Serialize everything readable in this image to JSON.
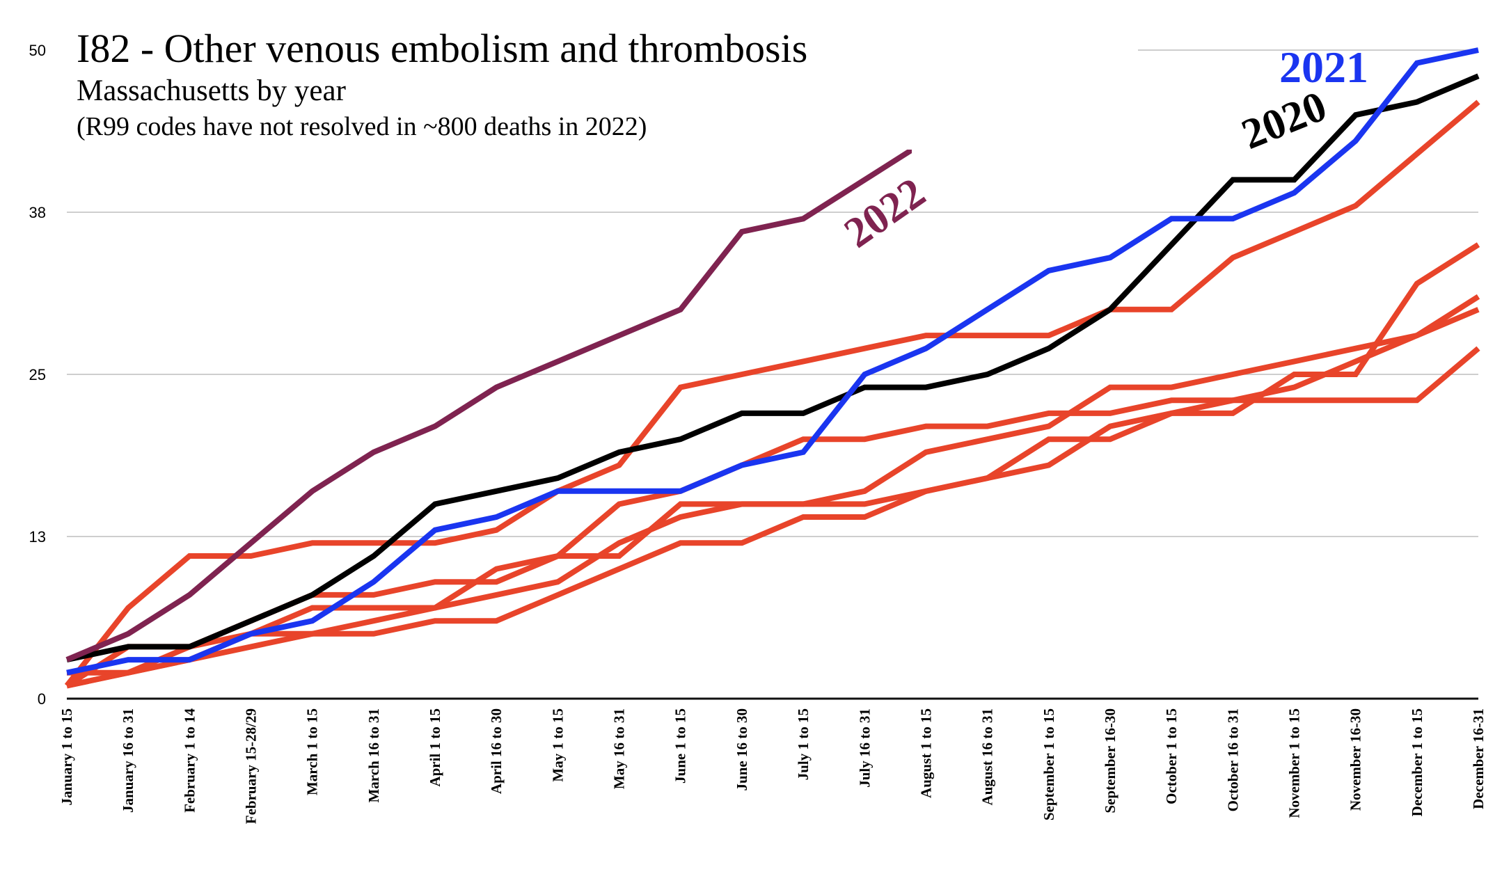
{
  "chart_data": {
    "type": "line",
    "title": "I82 - Other venous embolism and thrombosis",
    "subtitle": "Massachusetts by year",
    "note": "(R99 codes have not resolved in ~800 deaths in 2022)",
    "xlabel": "",
    "ylabel": "",
    "ylim": [
      0,
      50
    ],
    "yticks": [
      0,
      13,
      25,
      38,
      50
    ],
    "ytick_values": [
      0,
      12.5,
      25,
      37.5,
      50
    ],
    "grid": true,
    "legend": "none (inline labels)",
    "categories": [
      "January 1 to 15",
      "January 16 to 31",
      "February 1 to 14",
      "February 15-28/29",
      "March 1 to 15",
      "March 16 to 31",
      "April 1 to 15",
      "April 16 to 30",
      "May 1 to 15",
      "May 16 to 31",
      "June 1 to 15",
      "June 16 to 30",
      "July 1 to 15",
      "July 16 to 31",
      "August 1 to 15",
      "August 16 to 31",
      "September 1 to 15",
      "September 16-30",
      "October 1 to 15",
      "October 16 to 31",
      "November 1 to 15",
      "November 16-30",
      "December 1 to 15",
      "December 16-31"
    ],
    "series": [
      {
        "name": "other-year-a",
        "color": "#E8442A",
        "values": [
          1,
          7,
          11,
          11,
          12,
          12,
          12,
          13,
          16,
          18,
          24,
          25,
          26,
          27,
          28,
          28,
          28,
          30,
          30,
          34,
          36,
          38,
          42,
          46
        ]
      },
      {
        "name": "other-year-b",
        "color": "#E8442A",
        "values": [
          1,
          4,
          4,
          5,
          7,
          7,
          7,
          10,
          11,
          11,
          15,
          15,
          15,
          15,
          16,
          17,
          20,
          20,
          22,
          22,
          25,
          25,
          32,
          35
        ]
      },
      {
        "name": "other-year-c",
        "color": "#E8442A",
        "values": [
          2,
          2,
          3,
          4,
          5,
          6,
          7,
          8,
          9,
          12,
          14,
          15,
          15,
          16,
          19,
          20,
          21,
          24,
          24,
          25,
          26,
          27,
          28,
          31
        ]
      },
      {
        "name": "other-year-d",
        "color": "#E8442A",
        "values": [
          1,
          2,
          3,
          5,
          5,
          5,
          6,
          6,
          8,
          10,
          12,
          12,
          14,
          14,
          16,
          17,
          18,
          21,
          22,
          23,
          23,
          23,
          23,
          27
        ]
      },
      {
        "name": "other-year-e",
        "color": "#E8442A",
        "values": [
          1,
          2,
          4,
          6,
          8,
          8,
          9,
          9,
          11,
          15,
          16,
          18,
          20,
          20,
          21,
          21,
          22,
          22,
          23,
          23,
          24,
          26,
          28,
          30
        ]
      },
      {
        "name": "2020",
        "color": "#000000",
        "label": "2020",
        "values": [
          3,
          4,
          4,
          6,
          8,
          11,
          15,
          16,
          17,
          19,
          20,
          22,
          22,
          24,
          24,
          25,
          27,
          30,
          35,
          40,
          40,
          45,
          46,
          48
        ]
      },
      {
        "name": "2021",
        "color": "#1A35F0",
        "label": "2021",
        "values": [
          2,
          3,
          3,
          5,
          6,
          9,
          13,
          14,
          16,
          16,
          16,
          18,
          19,
          25,
          27,
          30,
          33,
          34,
          37,
          37,
          39,
          43,
          49,
          50
        ]
      },
      {
        "name": "2022",
        "color": "#7F2350",
        "label": "2022",
        "values": [
          3,
          5,
          8,
          12,
          16,
          19,
          21,
          24,
          26,
          28,
          30,
          36,
          37,
          40,
          43
        ],
        "clipped_at": 42.3
      }
    ]
  }
}
